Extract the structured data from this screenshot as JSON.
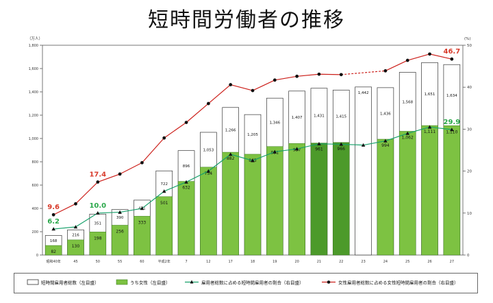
{
  "title": "短時間労働者の推移",
  "chart_data": {
    "type": "bar",
    "title": "短時間労働者の推移",
    "left_axis_unit": "（万人）",
    "right_axis_unit": "(%)",
    "ylim_left": [
      0,
      1800
    ],
    "ylim_right": [
      0,
      50
    ],
    "left_ticks": [
      "0",
      "200",
      "400",
      "600",
      "800",
      "1,000",
      "1,200",
      "1,400",
      "1,600",
      "1,800"
    ],
    "right_ticks": [
      "0",
      "10",
      "20",
      "30",
      "40",
      "50"
    ],
    "categories": [
      "昭和40年",
      "45",
      "50",
      "55",
      "60",
      "平成2年",
      "7",
      "12",
      "17",
      "18",
      "19",
      "20",
      "21",
      "22",
      "23",
      "24",
      "25",
      "26",
      "27"
    ],
    "series": [
      {
        "name": "短時間雇用者総数（左目盛）",
        "values": [
          168,
          216,
          351,
          390,
          471,
          722,
          896,
          1053,
          1266,
          1205,
          1346,
          1407,
          1431,
          1415,
          1442,
          1436,
          1568,
          1651,
          1634
        ]
      },
      {
        "name": "うち女性（左目盛）",
        "values": [
          82,
          130,
          198,
          256,
          333,
          501,
          632,
          754,
          882,
          865,
          931,
          957,
          961,
          966,
          null,
          994,
          1062,
          1111,
          1110
        ]
      },
      {
        "name": "雇用者総数に占める短時間雇用者の割合（右目盛）",
        "values": [
          6.2,
          6.7,
          10.0,
          10.2,
          11.1,
          15.2,
          17.4,
          20.0,
          24.0,
          22.5,
          24.6,
          25.3,
          26.5,
          26.4,
          26.2,
          27.2,
          29.0,
          30.5,
          29.9
        ]
      },
      {
        "name": "女性雇用者総数に占める女性短時間雇用者の割合（右目盛）",
        "values": [
          9.6,
          12.2,
          17.4,
          19.3,
          22.0,
          27.9,
          31.6,
          36.1,
          40.6,
          39.2,
          41.7,
          42.6,
          43.1,
          43.0,
          null,
          43.9,
          46.4,
          47.9,
          46.7
        ]
      }
    ],
    "annotations": [
      {
        "series": 3,
        "index": 0,
        "label": "9.6"
      },
      {
        "series": 3,
        "index": 2,
        "label": "17.4"
      },
      {
        "series": 3,
        "index": 18,
        "label": "46.7"
      },
      {
        "series": 2,
        "index": 0,
        "label": "6.2"
      },
      {
        "series": 2,
        "index": 2,
        "label": "10.0"
      },
      {
        "series": 2,
        "index": 18,
        "label": "29.9"
      }
    ],
    "gap_indices": [
      14
    ],
    "colors": {
      "bar_total_fill": "#ffffff",
      "bar_total_stroke": "#333333",
      "bar_female": "#7dc242",
      "bar_female_dark": "#4c9a2a",
      "line_part_time": "#16a06a",
      "line_female": "#cc1f1a",
      "annotation_red": "#d83a2a",
      "annotation_green": "#2aa84a"
    },
    "dark_bar_indices": [
      12,
      13
    ]
  }
}
